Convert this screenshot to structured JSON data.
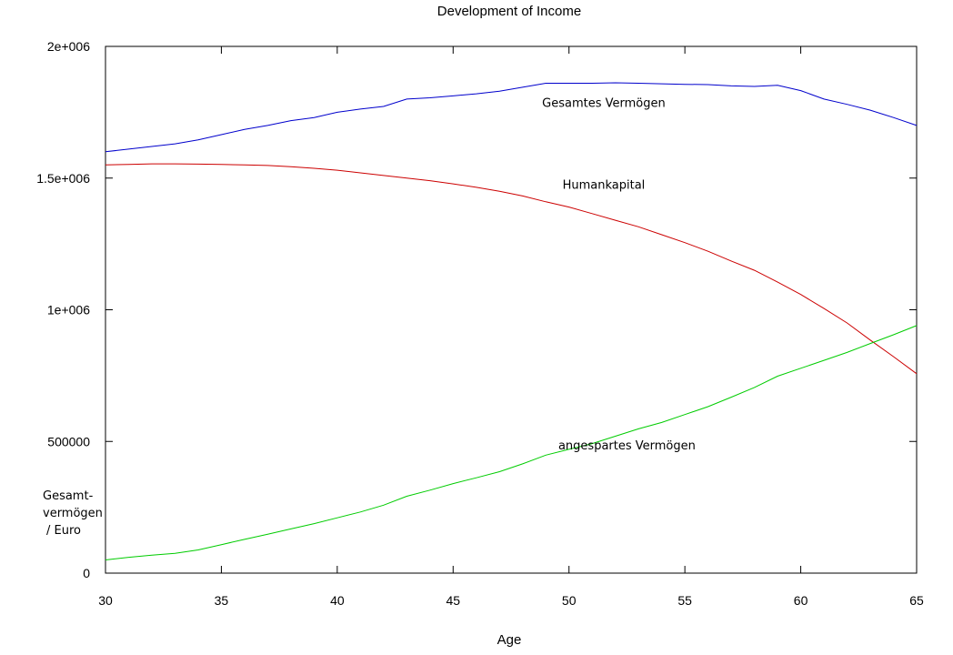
{
  "chart_data": {
    "type": "line",
    "title": "Development of Income",
    "xlabel": "Age",
    "ylabel_lines": [
      "Gesamt-",
      "vermögen",
      "/ Euro"
    ],
    "xlim": [
      30,
      65
    ],
    "ylim": [
      0,
      2000000
    ],
    "x_ticks": [
      30,
      35,
      40,
      45,
      50,
      55,
      60,
      65
    ],
    "y_ticks": [
      {
        "value": 0,
        "label": "0"
      },
      {
        "value": 500000,
        "label": "500000"
      },
      {
        "value": 1000000,
        "label": "1e+006"
      },
      {
        "value": 1500000,
        "label": "1.5e+006"
      },
      {
        "value": 2000000,
        "label": "2e+006"
      }
    ],
    "grid": false,
    "x": [
      30,
      31,
      32,
      33,
      34,
      35,
      36,
      37,
      38,
      39,
      40,
      41,
      42,
      43,
      44,
      45,
      46,
      47,
      48,
      49,
      50,
      51,
      52,
      53,
      54,
      55,
      56,
      57,
      58,
      59,
      60,
      61,
      62,
      63,
      64,
      65
    ],
    "series": [
      {
        "name": "Gesamtes Vermögen",
        "color": "#0000cc",
        "values": [
          1600000,
          1610000,
          1620000,
          1630000,
          1645000,
          1665000,
          1685000,
          1700000,
          1718000,
          1730000,
          1750000,
          1762000,
          1772000,
          1800000,
          1805000,
          1812000,
          1820000,
          1830000,
          1845000,
          1860000,
          1860000,
          1860000,
          1862000,
          1860000,
          1858000,
          1856000,
          1855000,
          1850000,
          1848000,
          1852000,
          1832000,
          1800000,
          1780000,
          1758000,
          1730000,
          1700000
        ]
      },
      {
        "name": "Humankapital",
        "color": "#cc0000",
        "values": [
          1550000,
          1552000,
          1554000,
          1554000,
          1553000,
          1552000,
          1550000,
          1548000,
          1543000,
          1537000,
          1530000,
          1520000,
          1510000,
          1500000,
          1490000,
          1478000,
          1465000,
          1450000,
          1432000,
          1410000,
          1390000,
          1365000,
          1340000,
          1315000,
          1285000,
          1255000,
          1222000,
          1185000,
          1150000,
          1105000,
          1058000,
          1005000,
          950000,
          885000,
          822000,
          757000
        ]
      },
      {
        "name": "angespartes Vermögen",
        "color": "#00cc00",
        "values": [
          50000,
          60000,
          68000,
          75000,
          88000,
          108000,
          128000,
          148000,
          168000,
          188000,
          210000,
          232000,
          258000,
          292000,
          315000,
          340000,
          362000,
          385000,
          415000,
          448000,
          470000,
          492000,
          520000,
          548000,
          572000,
          602000,
          632000,
          668000,
          705000,
          748000,
          778000,
          808000,
          838000,
          872000,
          905000,
          940000
        ]
      }
    ],
    "annotations": [
      {
        "text": "Gesamtes Vermögen",
        "x": 51.5,
        "y": 1770000
      },
      {
        "text": "Humankapital",
        "x": 51.5,
        "y": 1460000
      },
      {
        "text": "angespartes Vermögen",
        "x": 52.5,
        "y": 470000
      }
    ]
  }
}
